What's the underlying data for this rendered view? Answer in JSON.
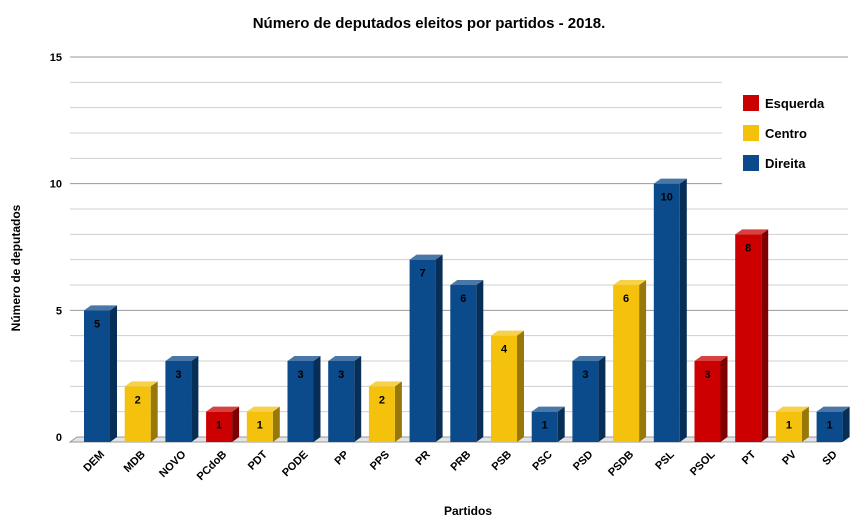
{
  "chart_data": {
    "type": "bar",
    "title": "Número de deputados eleitos por partidos - 2018.",
    "xlabel": "Partidos",
    "ylabel": "Número de deputados",
    "ylim": [
      0,
      15
    ],
    "yticks": [
      0,
      5,
      10,
      15
    ],
    "grid": true,
    "legend_position": "top-right",
    "categories": [
      "DEM",
      "MDB",
      "NOVO",
      "PCdoB",
      "PDT",
      "PODE",
      "PP",
      "PPS",
      "PR",
      "PRB",
      "PSB",
      "PSC",
      "PSD",
      "PSDB",
      "PSL",
      "PSOL",
      "PT",
      "PV",
      "SD"
    ],
    "values": [
      5,
      2,
      3,
      1,
      1,
      3,
      3,
      2,
      7,
      6,
      4,
      1,
      3,
      6,
      10,
      3,
      8,
      1,
      1
    ],
    "groups": [
      "Direita",
      "Centro",
      "Direita",
      "Esquerda",
      "Centro",
      "Direita",
      "Direita",
      "Centro",
      "Direita",
      "Direita",
      "Centro",
      "Direita",
      "Direita",
      "Centro",
      "Direita",
      "Esquerda",
      "Esquerda",
      "Centro",
      "Direita"
    ],
    "legend": [
      {
        "name": "Esquerda",
        "color": "#cc0000"
      },
      {
        "name": "Centro",
        "color": "#f4c20d"
      },
      {
        "name": "Direita",
        "color": "#0b4a8b"
      }
    ]
  }
}
